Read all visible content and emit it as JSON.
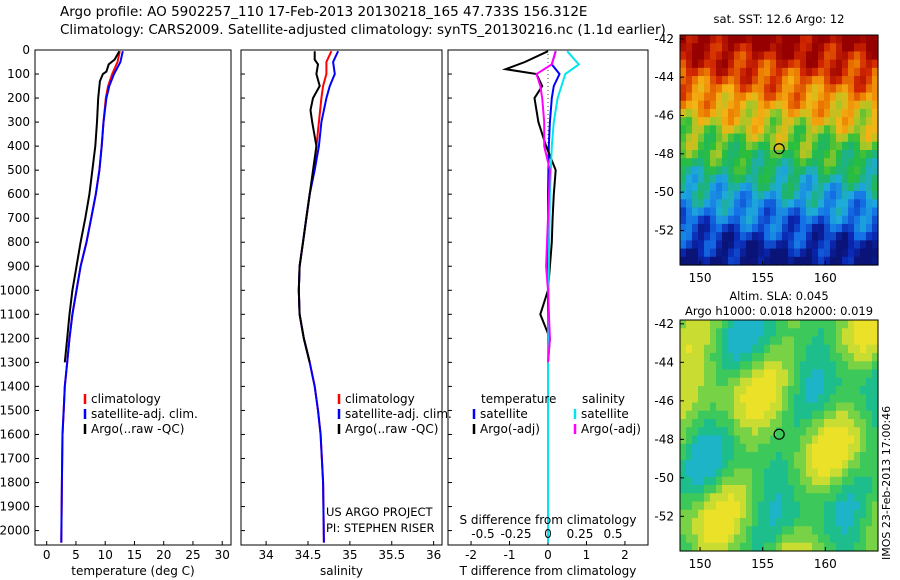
{
  "header": {
    "line1": "Argo profile: AO 5902257_110 17-Feb-2013 20130218_165 47.733S 156.312E",
    "line2": "Climatology: CARS2009. Satellite-adjusted climatology: synTS_20130216.nc (1.1d earlier)"
  },
  "footer": {
    "project": "US ARGO PROJECT",
    "pi": "PI: STEPHEN RISER"
  },
  "credit": "IMOS 23-Feb-2013 17:00:46",
  "colors": {
    "climatology": "#ff0000",
    "satellite": "#0000ff",
    "argo": "#000000",
    "sat_salinity": "#00e5ee",
    "argo_salinity": "#ff00ff"
  },
  "chart_data": [
    {
      "type": "line",
      "xlabel": "temperature (deg C)",
      "xlim": [
        -2,
        31.5
      ],
      "xticks": [
        0,
        5,
        10,
        15,
        20,
        25,
        30
      ],
      "ylim": [
        2060,
        0
      ],
      "yticks": [
        0,
        100,
        200,
        300,
        400,
        500,
        600,
        700,
        800,
        900,
        1000,
        1100,
        1200,
        1300,
        1400,
        1500,
        1600,
        1700,
        1800,
        1900,
        2000
      ],
      "legend": [
        "climatology",
        "satellite-adj. clim.",
        "Argo(..raw -QC)"
      ],
      "series": [
        {
          "name": "climatology",
          "color": "#ff0000",
          "x": [
            12.5,
            12.1,
            11.2,
            10.5,
            10.1,
            9.7,
            9.4,
            9.0,
            8.4,
            7.6,
            6.8,
            5.8,
            5.1,
            4.4,
            3.9,
            3.5,
            3.1,
            2.9,
            2.7,
            2.6,
            2.5
          ],
          "y": [
            5,
            50,
            100,
            150,
            200,
            300,
            400,
            500,
            600,
            700,
            800,
            900,
            1000,
            1100,
            1200,
            1300,
            1400,
            1500,
            1600,
            1800,
            2050
          ]
        },
        {
          "name": "satellite-adj. clim.",
          "color": "#0000ff",
          "x": [
            13.0,
            12.6,
            11.5,
            10.7,
            10.2,
            9.7,
            9.4,
            9.0,
            8.4,
            7.6,
            6.8,
            5.8,
            5.1,
            4.4,
            3.9,
            3.5,
            3.1,
            2.9,
            2.7,
            2.6,
            2.5
          ],
          "y": [
            5,
            50,
            100,
            150,
            200,
            300,
            400,
            500,
            600,
            700,
            800,
            900,
            1000,
            1100,
            1200,
            1300,
            1400,
            1500,
            1600,
            1800,
            2050
          ]
        },
        {
          "name": "Argo(..raw -QC)",
          "color": "#000000",
          "x": [
            12.4,
            11.6,
            10.6,
            10.2,
            9.6,
            9.1,
            8.8,
            8.6,
            8.3,
            7.3,
            6.6,
            5.8,
            5.1,
            4.4,
            3.9,
            3.5,
            3.1
          ],
          "y": [
            5,
            40,
            60,
            90,
            100,
            130,
            200,
            300,
            400,
            600,
            700,
            800,
            900,
            1000,
            1100,
            1200,
            1300
          ]
        }
      ]
    },
    {
      "type": "line",
      "xlabel": "salinity",
      "xlim": [
        33.7,
        36.1
      ],
      "xticks": [
        34,
        34.5,
        35,
        35.5,
        36
      ],
      "ylim": [
        2060,
        0
      ],
      "legend": [
        "climatology",
        "satellite-adj. clim.",
        "Argo(..raw -QC)"
      ],
      "series": [
        {
          "name": "climatology",
          "color": "#ff0000",
          "x": [
            34.78,
            34.72,
            34.72,
            34.68,
            34.66,
            34.63,
            34.6,
            34.57,
            34.52,
            34.48,
            34.44,
            34.4,
            34.39,
            34.4,
            34.45,
            34.52,
            34.58,
            34.62,
            34.65,
            34.68,
            34.69
          ],
          "y": [
            5,
            50,
            100,
            150,
            200,
            300,
            400,
            500,
            600,
            700,
            800,
            900,
            1000,
            1100,
            1200,
            1300,
            1400,
            1500,
            1600,
            1800,
            2050
          ]
        },
        {
          "name": "satellite-adj. clim.",
          "color": "#0000ff",
          "x": [
            34.86,
            34.8,
            34.82,
            34.76,
            34.72,
            34.66,
            34.63,
            34.58,
            34.52,
            34.48,
            34.44,
            34.4,
            34.39,
            34.4,
            34.45,
            34.52,
            34.58,
            34.62,
            34.65,
            34.68,
            34.69
          ],
          "y": [
            5,
            50,
            100,
            150,
            200,
            300,
            400,
            500,
            600,
            700,
            800,
            900,
            1000,
            1100,
            1200,
            1300,
            1400,
            1500,
            1600,
            1800,
            2050
          ]
        },
        {
          "name": "Argo(..raw -QC)",
          "color": "#000000",
          "x": [
            34.58,
            34.58,
            34.62,
            34.6,
            34.64,
            34.56,
            34.53,
            34.55,
            34.6,
            34.52,
            34.48,
            34.44,
            34.4,
            34.39,
            34.4,
            34.45,
            34.52
          ],
          "y": [
            5,
            40,
            60,
            100,
            150,
            200,
            250,
            300,
            400,
            600,
            700,
            800,
            900,
            1000,
            1100,
            1200,
            1300
          ]
        }
      ]
    },
    {
      "type": "line",
      "xlabel": "T difference from climatology",
      "xlabel2": "S difference from climatology",
      "xlim": [
        -2.6,
        2.6
      ],
      "xticks": [
        -2,
        -1,
        0,
        1,
        2
      ],
      "xticks_s": [
        "-0.5",
        "-0.25",
        "0",
        "0.25",
        "0.5"
      ],
      "ylim": [
        2060,
        0
      ],
      "legend_left_title": "temperature",
      "legend_right_title": "salinity",
      "legend": [
        "satellite",
        "Argo(-adj)",
        "satellite",
        "Argo(-adj)"
      ],
      "series": [
        {
          "name": "satellite",
          "color": "#0000ff",
          "x": [
            0.2,
            0.1,
            0.3,
            0.15,
            0.1,
            0.05,
            0.02,
            0.0,
            0.0,
            0.0,
            0.0,
            0.0
          ],
          "y": [
            5,
            60,
            100,
            150,
            200,
            300,
            400,
            600,
            800,
            1000,
            1500,
            2050
          ]
        },
        {
          "name": "Argo(-adj)",
          "color": "#000000",
          "x": [
            0.0,
            -0.6,
            -1.1,
            -0.3,
            -0.15,
            -0.35,
            -0.25,
            -0.05,
            0.2,
            0.15,
            0.12,
            0.1,
            0.05,
            0.0,
            -0.2,
            0.05,
            0.0
          ],
          "y": [
            5,
            50,
            80,
            100,
            150,
            200,
            300,
            400,
            500,
            600,
            700,
            800,
            900,
            1000,
            1100,
            1200,
            1300
          ]
        },
        {
          "name": "satellite",
          "color": "#00e5ee",
          "x": [
            0.5,
            0.8,
            0.45,
            0.35,
            0.25,
            0.15,
            0.1,
            0.05,
            0.02,
            0.0,
            0.0
          ],
          "y": [
            5,
            60,
            100,
            150,
            200,
            300,
            400,
            600,
            900,
            1300,
            2050
          ]
        },
        {
          "name": "Argo(-adj)",
          "color": "#ff00ff",
          "x": [
            0.2,
            0.1,
            -0.3,
            -0.2,
            -0.15,
            -0.1,
            -0.1,
            0.05,
            0.0,
            -0.05,
            0.0,
            0.05,
            0.0
          ],
          "y": [
            5,
            60,
            100,
            150,
            200,
            300,
            400,
            500,
            700,
            900,
            1000,
            1200,
            1300
          ]
        }
      ]
    },
    {
      "type": "heatmap",
      "title": "sat. SST: 12.6 Argo: 12",
      "xlim": [
        148.4,
        164.2
      ],
      "ylim": [
        -53.8,
        -41.8
      ],
      "xticks": [
        150,
        155,
        160
      ],
      "yticks": [
        -42,
        -44,
        -46,
        -48,
        -50,
        -52
      ],
      "argo_position": [
        156.312,
        -47.733
      ]
    },
    {
      "type": "heatmap",
      "title": "Altim. SLA: 0.045",
      "subtitle": "Argo h1000: 0.018 h2000: 0.019",
      "xlim": [
        148.4,
        164.2
      ],
      "ylim": [
        -53.8,
        -41.8
      ],
      "xticks": [
        150,
        155,
        160
      ],
      "yticks": [
        -42,
        -44,
        -46,
        -48,
        -50,
        -52
      ],
      "argo_position": [
        156.312,
        -47.733
      ]
    }
  ]
}
